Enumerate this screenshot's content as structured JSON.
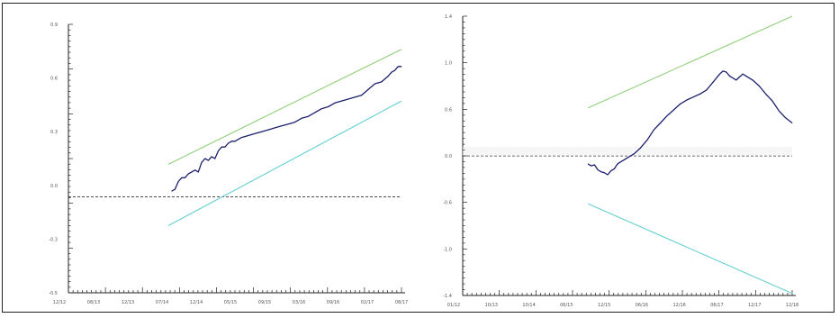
{
  "colors": {
    "actual": "#1c1f6e",
    "upper_band": "#8fcf7a",
    "lower_band": "#63cfd3",
    "zero_line": "#333333",
    "axis": "#222222"
  },
  "chart_data": [
    {
      "type": "line",
      "title": "",
      "xlabel": "",
      "ylabel": "",
      "xlim": [
        0,
        100
      ],
      "ylim": [
        -0.5,
        0.9
      ],
      "grid": false,
      "legend": "none",
      "reference_line": {
        "y": 0,
        "style": "dashed"
      },
      "x_tick_labels": [
        "12/12",
        "08/13",
        "12/13",
        "07/14",
        "12/14",
        "05/15",
        "09/15",
        "03/16",
        "09/16",
        "02/17",
        "08/17"
      ],
      "y_tick_labels": [
        "0.9",
        "0.6",
        "0.3",
        "0.0",
        "-0.3",
        "-0.5"
      ],
      "series": [
        {
          "x": [
            31,
            32,
            33,
            34,
            35,
            36,
            37,
            38,
            39,
            40,
            41,
            42,
            43,
            44,
            45,
            46,
            47,
            48,
            49,
            50,
            52,
            54,
            56,
            58,
            60,
            62,
            64,
            66,
            68,
            70,
            72,
            74,
            76,
            78,
            80,
            82,
            84,
            86,
            88,
            90,
            92,
            94,
            96,
            97,
            98,
            99,
            100
          ],
          "values": [
            0.03,
            0.04,
            0.08,
            0.1,
            0.1,
            0.12,
            0.13,
            0.14,
            0.13,
            0.18,
            0.2,
            0.19,
            0.21,
            0.2,
            0.24,
            0.26,
            0.26,
            0.28,
            0.29,
            0.29,
            0.31,
            0.32,
            0.33,
            0.34,
            0.35,
            0.36,
            0.37,
            0.38,
            0.39,
            0.41,
            0.42,
            0.44,
            0.46,
            0.47,
            0.49,
            0.5,
            0.51,
            0.52,
            0.53,
            0.56,
            0.59,
            0.6,
            0.63,
            0.65,
            0.66,
            0.68,
            0.68
          ]
        },
        {
          "x": [
            30,
            100
          ],
          "values": [
            0.17,
            0.77
          ]
        },
        {
          "x": [
            30,
            100
          ],
          "values": [
            -0.15,
            0.5
          ]
        }
      ]
    },
    {
      "type": "line",
      "title": "",
      "xlabel": "",
      "ylabel": "",
      "xlim": [
        0,
        100
      ],
      "ylim": [
        -1.4,
        1.4
      ],
      "grid": false,
      "legend": "none",
      "reference_line": {
        "y": 0,
        "style": "dashed"
      },
      "x_tick_labels": [
        "01/12",
        "10/13",
        "10/14",
        "06/15",
        "12/15",
        "06/16",
        "12/16",
        "06/17",
        "12/17",
        "12/18"
      ],
      "y_tick_labels": [
        "1.4",
        "1.0",
        "0.6",
        "0.0",
        "-0.6",
        "-1.0",
        "-1.4"
      ],
      "series": [
        {
          "x": [
            38,
            39,
            40,
            41,
            42,
            43,
            44,
            45,
            46,
            47,
            48,
            49,
            50,
            52,
            54,
            56,
            58,
            60,
            62,
            64,
            66,
            68,
            70,
            72,
            74,
            75,
            76,
            77,
            78,
            79,
            80,
            81,
            82,
            83,
            84,
            85,
            86,
            88,
            90,
            92,
            94,
            96,
            98,
            100
          ],
          "values": [
            -0.08,
            -0.1,
            -0.09,
            -0.14,
            -0.16,
            -0.17,
            -0.19,
            -0.15,
            -0.13,
            -0.08,
            -0.06,
            -0.04,
            -0.02,
            0.02,
            0.08,
            0.16,
            0.26,
            0.33,
            0.4,
            0.46,
            0.52,
            0.56,
            0.59,
            0.62,
            0.66,
            0.7,
            0.74,
            0.78,
            0.82,
            0.85,
            0.84,
            0.8,
            0.78,
            0.76,
            0.79,
            0.82,
            0.8,
            0.76,
            0.7,
            0.62,
            0.55,
            0.45,
            0.38,
            0.33
          ]
        },
        {
          "x": [
            38,
            100
          ],
          "values": [
            0.48,
            1.4
          ]
        },
        {
          "x": [
            38,
            100
          ],
          "values": [
            -0.48,
            -1.38
          ]
        }
      ]
    }
  ]
}
